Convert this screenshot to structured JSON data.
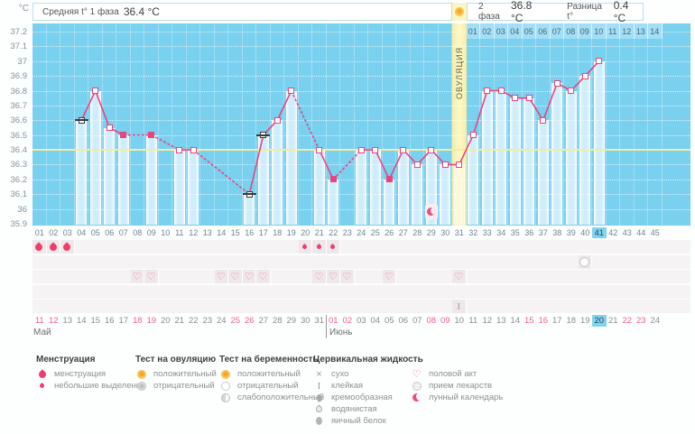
{
  "header": {
    "avg1_label": "Средняя t° 1 фаза",
    "avg1_value": "36.4 °C",
    "phase2_label": "2 фаза",
    "phase2_value": "36.8 °C",
    "diff_label": "Разница t°",
    "diff_value": "0.4 °C"
  },
  "months": {
    "first": "Май",
    "second": "Июнь"
  },
  "chart_data": {
    "type": "line",
    "ylabel": "°C",
    "ylim": [
      35.9,
      37.2
    ],
    "ytick_step": 0.1,
    "yticks": [
      "37.2",
      "37.1",
      "37",
      "36.9",
      "36.8",
      "36.7",
      "36.6",
      "36.5",
      "36.4",
      "36.3",
      "36.2",
      "36.1",
      "36",
      "35.9"
    ],
    "coverline": 36.4,
    "cycle_length_days": 45,
    "current_day": 41,
    "ovulation_day": 31,
    "ovulation_label": "ОВУЛЯЦИЯ",
    "line_color": "#e8457f",
    "days": [
      {
        "n": "01",
        "date": "11",
        "weekend": true,
        "menses": "heavy"
      },
      {
        "n": "02",
        "date": "12",
        "weekend": true,
        "menses": "heavy"
      },
      {
        "n": "03",
        "date": "13",
        "menses": "heavy"
      },
      {
        "n": "04",
        "date": "14",
        "temp": 36.6,
        "marker": "black"
      },
      {
        "n": "05",
        "date": "15",
        "temp": 36.8,
        "marker": "open"
      },
      {
        "n": "06",
        "date": "16",
        "temp": 36.55,
        "marker": "open"
      },
      {
        "n": "07",
        "date": "17",
        "temp": 36.5,
        "marker": "filled"
      },
      {
        "n": "08",
        "date": "18",
        "weekend": true,
        "heart": true
      },
      {
        "n": "09",
        "date": "19",
        "weekend": true,
        "temp": 36.5,
        "marker": "filled",
        "heart": true
      },
      {
        "n": "10",
        "date": "20"
      },
      {
        "n": "11",
        "date": "21",
        "temp": 36.4,
        "marker": "open"
      },
      {
        "n": "12",
        "date": "22",
        "temp": 36.4,
        "marker": "open"
      },
      {
        "n": "13",
        "date": "23"
      },
      {
        "n": "14",
        "date": "24",
        "heart": true
      },
      {
        "n": "15",
        "date": "25",
        "weekend": true,
        "heart": true
      },
      {
        "n": "16",
        "date": "26",
        "weekend": true,
        "temp": 36.1,
        "marker": "black",
        "heart": true
      },
      {
        "n": "17",
        "date": "27",
        "temp": 36.5,
        "marker": "black",
        "heart": true
      },
      {
        "n": "18",
        "date": "28",
        "temp": 36.6,
        "marker": "open"
      },
      {
        "n": "19",
        "date": "29",
        "temp": 36.8,
        "marker": "open"
      },
      {
        "n": "20",
        "date": "30",
        "menses": "spot"
      },
      {
        "n": "21",
        "date": "31",
        "temp": 36.4,
        "marker": "open",
        "menses": "spot",
        "heart": true
      },
      {
        "n": "22",
        "date": "01",
        "weekend": true,
        "temp": 36.2,
        "marker": "filled",
        "menses": "spot",
        "heart": true
      },
      {
        "n": "23",
        "date": "02",
        "weekend": true,
        "heart": true
      },
      {
        "n": "24",
        "date": "03",
        "temp": 36.4,
        "marker": "open"
      },
      {
        "n": "25",
        "date": "04",
        "temp": 36.4,
        "marker": "open"
      },
      {
        "n": "26",
        "date": "05",
        "temp": 36.2,
        "marker": "filled",
        "heart": true
      },
      {
        "n": "27",
        "date": "06",
        "temp": 36.4,
        "marker": "open"
      },
      {
        "n": "28",
        "date": "07",
        "temp": 36.3,
        "marker": "open"
      },
      {
        "n": "29",
        "date": "08",
        "weekend": true,
        "temp": 36.4,
        "marker": "open",
        "moon": true
      },
      {
        "n": "30",
        "date": "09",
        "weekend": true,
        "temp": 36.3,
        "marker": "open"
      },
      {
        "n": "31",
        "date": "10",
        "temp": 36.3,
        "marker": "open",
        "ovulation": true,
        "heart": true,
        "cf": "sticky"
      },
      {
        "n": "32",
        "date": "11",
        "dpo": "01",
        "temp": 36.5,
        "marker": "open"
      },
      {
        "n": "33",
        "date": "12",
        "dpo": "02",
        "temp": 36.8,
        "marker": "open"
      },
      {
        "n": "34",
        "date": "13",
        "dpo": "03",
        "temp": 36.8,
        "marker": "open"
      },
      {
        "n": "35",
        "date": "14",
        "dpo": "04",
        "temp": 36.75,
        "marker": "open"
      },
      {
        "n": "36",
        "date": "15",
        "dpo": "05",
        "weekend": true,
        "temp": 36.75,
        "marker": "open"
      },
      {
        "n": "37",
        "date": "16",
        "dpo": "06",
        "weekend": true,
        "temp": 36.6,
        "marker": "open"
      },
      {
        "n": "38",
        "date": "17",
        "dpo": "07",
        "temp": 36.85,
        "marker": "open"
      },
      {
        "n": "39",
        "date": "18",
        "dpo": "08",
        "temp": 36.8,
        "marker": "open"
      },
      {
        "n": "40",
        "date": "19",
        "dpo": "09",
        "temp": 36.9,
        "marker": "open",
        "meds": true
      },
      {
        "n": "41",
        "date": "20",
        "dpo": "10",
        "temp": 37.0,
        "marker": "open",
        "today": true
      },
      {
        "n": "42",
        "date": "21",
        "dpo": "11"
      },
      {
        "n": "43",
        "date": "22",
        "dpo": "12",
        "weekend": true
      },
      {
        "n": "44",
        "date": "23",
        "dpo": "13",
        "weekend": true
      },
      {
        "n": "45",
        "date": "24",
        "dpo": "14"
      }
    ]
  },
  "legend": {
    "sections": [
      {
        "title": "Менструация",
        "items": [
          {
            "icon": "drop-large",
            "label": "менструация"
          },
          {
            "icon": "drop-small",
            "label": "небольшие выделения"
          }
        ]
      },
      {
        "title": "Тест на овуляцию",
        "items": [
          {
            "icon": "sun",
            "label": "положительный"
          },
          {
            "icon": "grey-circle",
            "label": "отрицательный"
          }
        ]
      },
      {
        "title": "Тест на беременность",
        "items": [
          {
            "icon": "sun",
            "label": "положительный"
          },
          {
            "icon": "white-circle",
            "label": "отрицательный"
          },
          {
            "icon": "half-circle",
            "label": "слабоположительный"
          }
        ]
      },
      {
        "title": "Цервикальная жидкость",
        "items": [
          {
            "icon": "cross",
            "label": "сухо"
          },
          {
            "icon": "sticky",
            "label": "клейкая"
          },
          {
            "icon": "creamy",
            "label": "кремообразная"
          },
          {
            "icon": "watery",
            "label": "водянистая"
          },
          {
            "icon": "egg",
            "label": "яичный белок"
          }
        ]
      },
      {
        "title": "",
        "items": [
          {
            "icon": "heart",
            "label": "половой акт"
          },
          {
            "icon": "pill",
            "label": "прием лекарств"
          },
          {
            "icon": "moon",
            "label": "лунный календарь"
          }
        ]
      }
    ]
  },
  "colors": {
    "chart_blue": "#79d0ef",
    "bar_blue": "#cfecfa",
    "line_pink": "#e8457f",
    "ovulation_yellow": "#fdf8c9",
    "coverline_yellow": "#f4eda0",
    "today_blue": "#7fd3f1",
    "weekend_pink": "#ee5f9b",
    "menses_red": "#ee3d6e",
    "sun_orange": "#f8a41e"
  }
}
